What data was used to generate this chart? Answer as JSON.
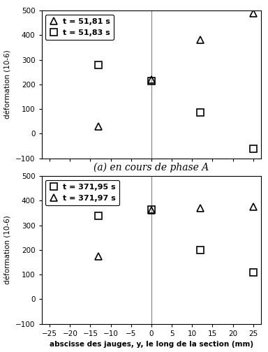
{
  "chart1": {
    "series": [
      {
        "x": [
          -13,
          0,
          12,
          25
        ],
        "y": [
          30,
          220,
          380,
          490
        ],
        "marker": "^",
        "label": "t = 51,81 s"
      },
      {
        "x": [
          -13,
          0,
          12,
          25
        ],
        "y": [
          280,
          215,
          85,
          -60
        ],
        "marker": "s",
        "label": "t = 51,83 s"
      }
    ],
    "xlim": [
      -27,
      27
    ],
    "ylim": [
      -100,
      500
    ],
    "xticks": [
      -25,
      -20,
      -15,
      -10,
      -5,
      0,
      5,
      10,
      15,
      20,
      25
    ],
    "yticks": [
      -100,
      0,
      100,
      200,
      300,
      400,
      500
    ],
    "xlabel": "abscisse des jauges, y, le long de la section (mm)",
    "ylabel": "déformation (10-6)",
    "caption": "(a) en cours de phase A"
  },
  "chart2": {
    "series": [
      {
        "x": [
          -13,
          0,
          12,
          25
        ],
        "y": [
          340,
          365,
          200,
          110
        ],
        "marker": "s",
        "label": "t = 371,95 s"
      },
      {
        "x": [
          -13,
          0,
          12,
          25
        ],
        "y": [
          175,
          360,
          370,
          375
        ],
        "marker": "^",
        "label": "t = 371,97 s"
      }
    ],
    "xlim": [
      -27,
      27
    ],
    "ylim": [
      -100,
      500
    ],
    "xticks": [
      -25,
      -20,
      -15,
      -10,
      -5,
      0,
      5,
      10,
      15,
      20,
      25
    ],
    "yticks": [
      -100,
      0,
      100,
      200,
      300,
      400,
      500
    ],
    "xlabel": "abscisse des jauges, y, le long de la section (mm)",
    "ylabel": "déformation (10-6)"
  },
  "marker_size": 7,
  "line_color": "#000000",
  "bg_color": "#ffffff",
  "vline_color": "#808080",
  "font_size_label": 7.5,
  "font_size_tick": 7.5,
  "font_size_legend": 8,
  "font_size_caption": 10
}
